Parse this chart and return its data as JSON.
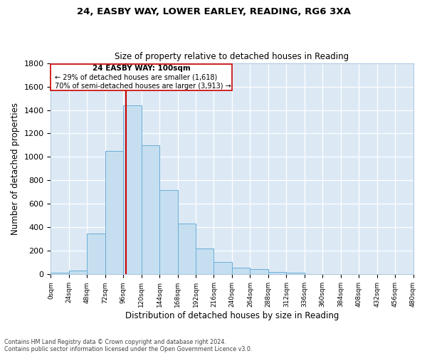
{
  "title1": "24, EASBY WAY, LOWER EARLEY, READING, RG6 3XA",
  "title2": "Size of property relative to detached houses in Reading",
  "xlabel": "Distribution of detached houses by size in Reading",
  "ylabel": "Number of detached properties",
  "footnote1": "Contains HM Land Registry data © Crown copyright and database right 2024.",
  "footnote2": "Contains public sector information licensed under the Open Government Licence v3.0.",
  "bar_color": "#c5dff0",
  "bar_edge_color": "#6aaed6",
  "vline_color": "#cc0000",
  "annotation_box_edge": "#cc0000",
  "annotation_line1": "24 EASBY WAY: 100sqm",
  "annotation_line2": "← 29% of detached houses are smaller (1,618)",
  "annotation_line3": "70% of semi-detached houses are larger (3,913) →",
  "property_size": 100,
  "bin_edges": [
    0,
    24,
    48,
    72,
    96,
    120,
    144,
    168,
    192,
    216,
    240,
    264,
    288,
    312,
    336,
    360,
    384,
    408,
    432,
    456,
    480
  ],
  "bin_heights": [
    15,
    30,
    350,
    1050,
    1440,
    1100,
    720,
    430,
    220,
    108,
    57,
    45,
    22,
    13,
    5,
    2,
    1,
    0,
    0,
    0
  ],
  "ylim": [
    0,
    1800
  ],
  "ytick_step": 200,
  "figsize": [
    6.0,
    5.0
  ],
  "dpi": 100
}
